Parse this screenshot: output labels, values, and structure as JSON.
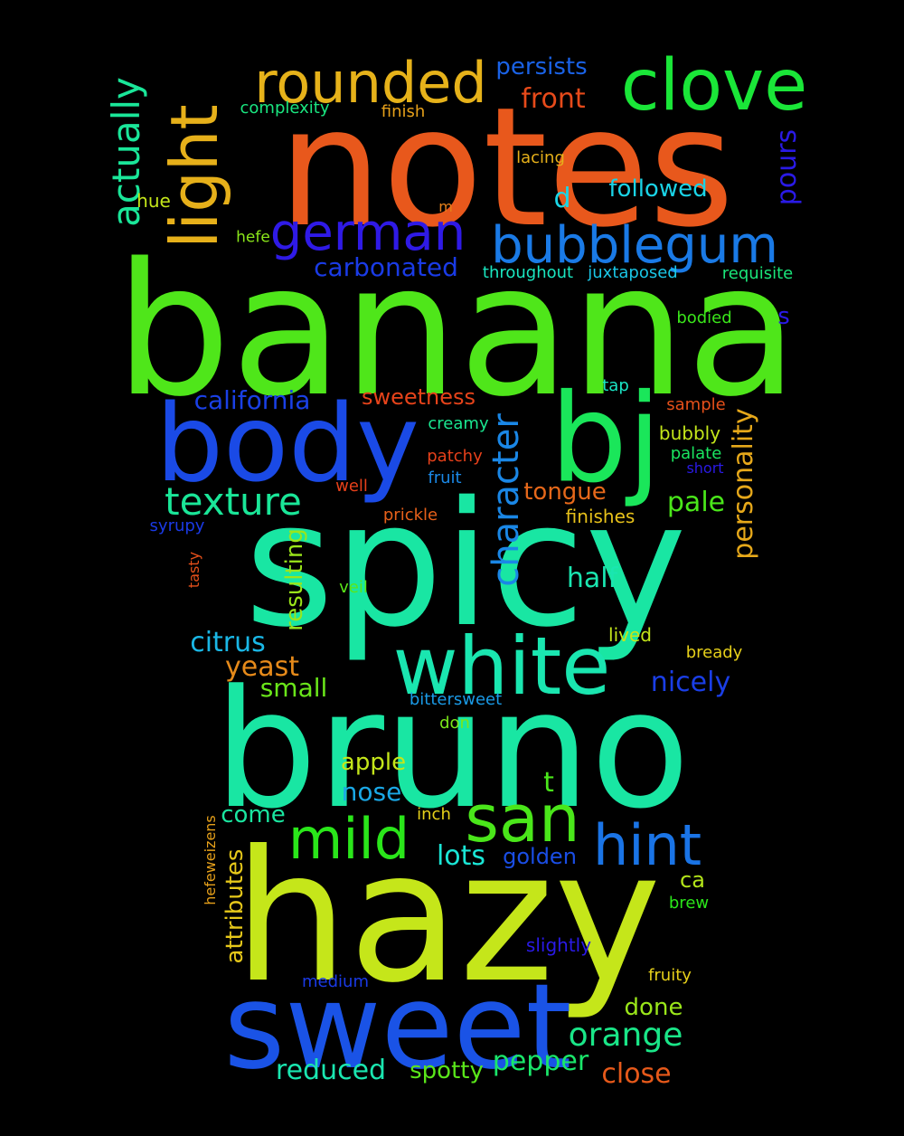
{
  "words": [
    {
      "text": "notes",
      "color": "#e8581c"
    },
    {
      "text": "banana",
      "color": "#4fe61a"
    },
    {
      "text": "spicy",
      "color": "#19e6a3"
    },
    {
      "text": "bruno",
      "color": "#19e6a3"
    },
    {
      "text": "hazy",
      "color": "#c5e61a"
    },
    {
      "text": "sweet",
      "color": "#1a53e6"
    },
    {
      "text": "body",
      "color": "#1a4ae6"
    },
    {
      "text": "bj",
      "color": "#1ae65a"
    },
    {
      "text": "white",
      "color": "#1ae6b0"
    },
    {
      "text": "clove",
      "color": "#1ae638"
    },
    {
      "text": "rounded",
      "color": "#e6b21a"
    },
    {
      "text": "light",
      "color": "#e6b01a"
    },
    {
      "text": "german",
      "color": "#2f1ae6"
    },
    {
      "text": "bubblegum",
      "color": "#1a7ae6"
    },
    {
      "text": "san",
      "color": "#4ae61a"
    },
    {
      "text": "mild",
      "color": "#2ae61a"
    },
    {
      "text": "hint",
      "color": "#1a74e6"
    },
    {
      "text": "actually",
      "color": "#1ae699"
    },
    {
      "text": "texture",
      "color": "#1ae698"
    },
    {
      "text": "character",
      "color": "#1a87e6"
    },
    {
      "text": "persists",
      "color": "#1a62e6"
    },
    {
      "text": "front",
      "color": "#e64a1a"
    },
    {
      "text": "carbonated",
      "color": "#1a3be6"
    },
    {
      "text": "followed",
      "color": "#1ad3e6"
    },
    {
      "text": "pours",
      "color": "#2a1ae6"
    },
    {
      "text": "d",
      "color": "#1ad6e6"
    },
    {
      "text": "california",
      "color": "#1a40e6"
    },
    {
      "text": "sweetness",
      "color": "#e6431a"
    },
    {
      "text": "personality",
      "color": "#e6a81a"
    },
    {
      "text": "orange",
      "color": "#1ae688"
    },
    {
      "text": "citrus",
      "color": "#1ab7e6"
    },
    {
      "text": "yeast",
      "color": "#e68a1a"
    },
    {
      "text": "small",
      "color": "#6ae61a"
    },
    {
      "text": "half",
      "color": "#1ae6b0"
    },
    {
      "text": "pale",
      "color": "#4ae61a"
    },
    {
      "text": "tongue",
      "color": "#e6681a"
    },
    {
      "text": "nicely",
      "color": "#1a3ee6"
    },
    {
      "text": "resulting",
      "color": "#9ae61a"
    },
    {
      "text": "apple",
      "color": "#c4e61a"
    },
    {
      "text": "nose",
      "color": "#1aa8e6"
    },
    {
      "text": "t",
      "color": "#4ae61a"
    },
    {
      "text": "come",
      "color": "#1ae6a0"
    },
    {
      "text": "lots",
      "color": "#1ae6d6"
    },
    {
      "text": "golden",
      "color": "#1a4ee6"
    },
    {
      "text": "pepper",
      "color": "#1ae66a"
    },
    {
      "text": "reduced",
      "color": "#1ae6b0"
    },
    {
      "text": "spotty",
      "color": "#5ae61a"
    },
    {
      "text": "close",
      "color": "#e6591a"
    },
    {
      "text": "done",
      "color": "#9ae61a"
    },
    {
      "text": "attributes",
      "color": "#e6c81a"
    },
    {
      "text": "complexity",
      "color": "#1ae680"
    },
    {
      "text": "finish",
      "color": "#e6a01a"
    },
    {
      "text": "lacing",
      "color": "#e6b01a"
    },
    {
      "text": "m",
      "color": "#e6801a"
    },
    {
      "text": "hue",
      "color": "#c4e61a"
    },
    {
      "text": "hefe",
      "color": "#8ae61a"
    },
    {
      "text": "throughout",
      "color": "#1ae6c0"
    },
    {
      "text": "juxtaposed",
      "color": "#1ac6e6"
    },
    {
      "text": "requisite",
      "color": "#1ae67a"
    },
    {
      "text": "bodied",
      "color": "#3ae61a"
    },
    {
      "text": "s",
      "color": "#2a1ae6"
    },
    {
      "text": "tap",
      "color": "#1ae6c6"
    },
    {
      "text": "sample",
      "color": "#e6501a"
    },
    {
      "text": "creamy",
      "color": "#1ae690"
    },
    {
      "text": "bubbly",
      "color": "#c4e61a"
    },
    {
      "text": "palate",
      "color": "#1ae660"
    },
    {
      "text": "patchy",
      "color": "#e6401a"
    },
    {
      "text": "short",
      "color": "#2a1ae6"
    },
    {
      "text": "well",
      "color": "#e6401a"
    },
    {
      "text": "fruit",
      "color": "#1a88e6"
    },
    {
      "text": "prickle",
      "color": "#e6601a"
    },
    {
      "text": "finishes",
      "color": "#e6c01a"
    },
    {
      "text": "syrupy",
      "color": "#1a3ae6"
    },
    {
      "text": "tasty",
      "color": "#e6501a"
    },
    {
      "text": "veil",
      "color": "#5ae61a"
    },
    {
      "text": "lived",
      "color": "#c4e61a"
    },
    {
      "text": "bready",
      "color": "#e6d01a"
    },
    {
      "text": "bittersweet",
      "color": "#1a9ae6"
    },
    {
      "text": "don",
      "color": "#7ae61a"
    },
    {
      "text": "inch",
      "color": "#e6d01a"
    },
    {
      "text": "hefeweizens",
      "color": "#e6a01a"
    },
    {
      "text": "ca",
      "color": "#b4e61a"
    },
    {
      "text": "brew",
      "color": "#2ae61a"
    },
    {
      "text": "slightly",
      "color": "#2a1ae6"
    },
    {
      "text": "medium",
      "color": "#1a3ae6"
    },
    {
      "text": "fruity",
      "color": "#e6d01a"
    }
  ]
}
